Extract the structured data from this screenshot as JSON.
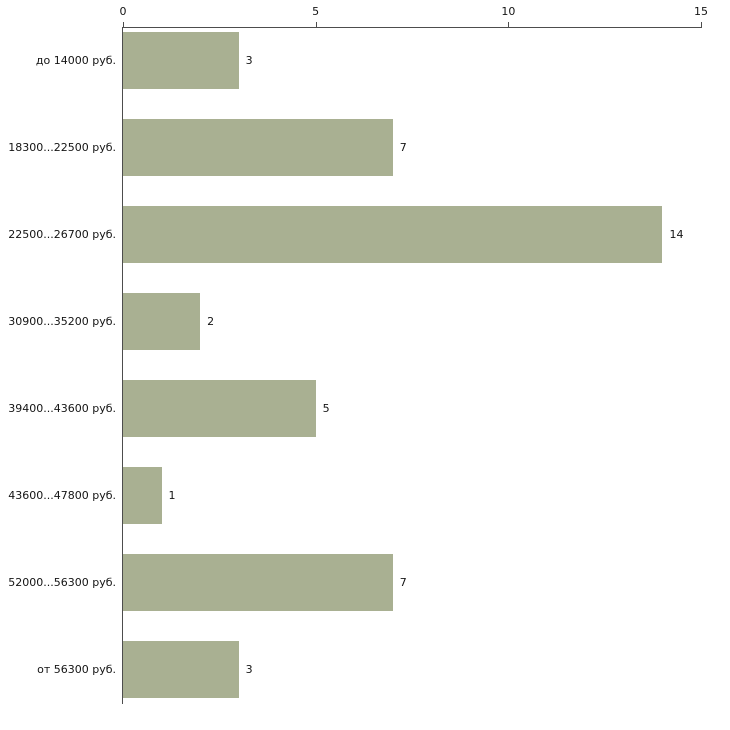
{
  "chart_data": {
    "type": "bar",
    "orientation": "horizontal",
    "title": "",
    "xlabel": "",
    "ylabel": "",
    "categories": [
      "до 14000 руб.",
      "18300...22500 руб.",
      "22500...26700 руб.",
      "30900...35200 руб.",
      "39400...43600 руб.",
      "43600...47800 руб.",
      "52000...56300 руб.",
      "от 56300 руб."
    ],
    "values": [
      3,
      7,
      14,
      2,
      5,
      1,
      7,
      3
    ],
    "xlim": [
      0,
      15
    ],
    "x_ticks": [
      0,
      5,
      10,
      15
    ],
    "grid": false,
    "legend": false,
    "bar_color": "#a9b092",
    "axis_color": "#4d4d4d",
    "label_color": "#141414",
    "background_color": "#ffffff"
  }
}
